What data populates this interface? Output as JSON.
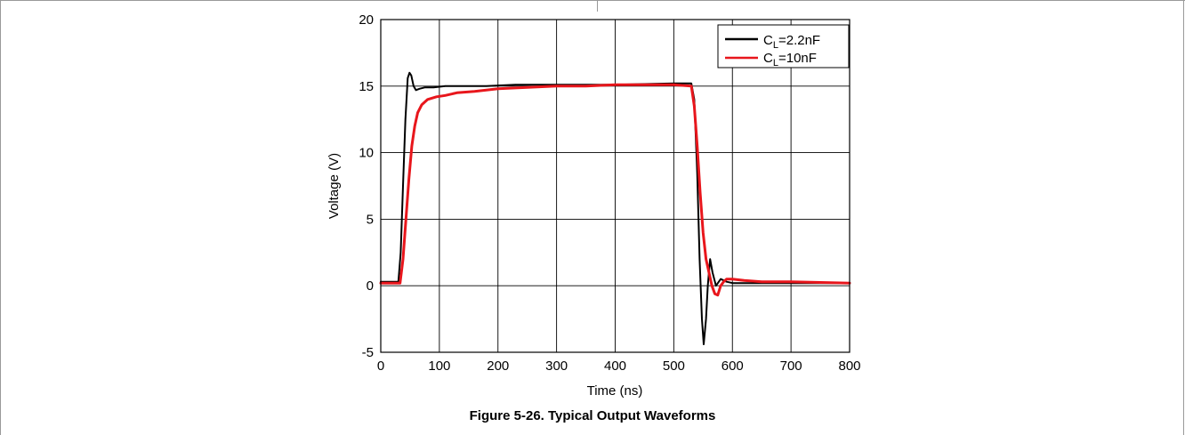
{
  "caption": "Figure 5-26. Typical Output Waveforms",
  "chart_data": {
    "type": "line",
    "xlabel": "Time (ns)",
    "ylabel": "Voltage (V)",
    "xlim": [
      0,
      800
    ],
    "ylim": [
      -5,
      20
    ],
    "xticks": [
      0,
      100,
      200,
      300,
      400,
      500,
      600,
      700,
      800
    ],
    "yticks": [
      -5,
      0,
      5,
      10,
      15,
      20
    ],
    "grid": true,
    "legend_position": "top-right",
    "series": [
      {
        "name": "CL=2.2nF",
        "legend_main": "C",
        "legend_sub": "L",
        "legend_rest": "=2.2nF",
        "color": "#000000",
        "x": [
          0,
          30,
          34,
          38,
          42,
          46,
          49,
          52,
          56,
          60,
          66,
          75,
          90,
          110,
          140,
          180,
          230,
          300,
          400,
          500,
          530,
          535,
          540,
          544,
          548,
          551,
          555,
          558,
          562,
          566,
          572,
          580,
          590,
          600,
          650,
          700,
          800
        ],
        "y": [
          0.3,
          0.3,
          2.5,
          7.5,
          12.5,
          15.6,
          16.0,
          15.8,
          15.0,
          14.7,
          14.8,
          14.9,
          14.9,
          15.0,
          15.0,
          15.0,
          15.1,
          15.1,
          15.1,
          15.2,
          15.2,
          14.0,
          8.5,
          2.0,
          -2.5,
          -4.4,
          -2.5,
          0.0,
          2.0,
          1.0,
          0.0,
          0.5,
          0.3,
          0.2,
          0.2,
          0.2,
          0.2
        ]
      },
      {
        "name": "CL=10nF",
        "legend_main": "C",
        "legend_sub": "L",
        "legend_rest": "=10nF",
        "color": "#e8161c",
        "x": [
          0,
          33,
          38,
          43,
          48,
          53,
          58,
          63,
          70,
          80,
          95,
          110,
          130,
          160,
          200,
          250,
          300,
          350,
          400,
          450,
          500,
          530,
          535,
          540,
          545,
          550,
          555,
          560,
          565,
          570,
          575,
          580,
          585,
          590,
          600,
          620,
          650,
          700,
          800
        ],
        "y": [
          0.2,
          0.2,
          2.0,
          5.0,
          8.0,
          10.5,
          12.0,
          13.0,
          13.6,
          14.0,
          14.2,
          14.3,
          14.5,
          14.6,
          14.8,
          14.9,
          15.0,
          15.0,
          15.1,
          15.1,
          15.1,
          15.0,
          13.5,
          10.5,
          7.0,
          4.0,
          2.0,
          1.0,
          0.0,
          -0.6,
          -0.7,
          0.0,
          0.3,
          0.5,
          0.5,
          0.4,
          0.3,
          0.3,
          0.2
        ]
      }
    ]
  }
}
